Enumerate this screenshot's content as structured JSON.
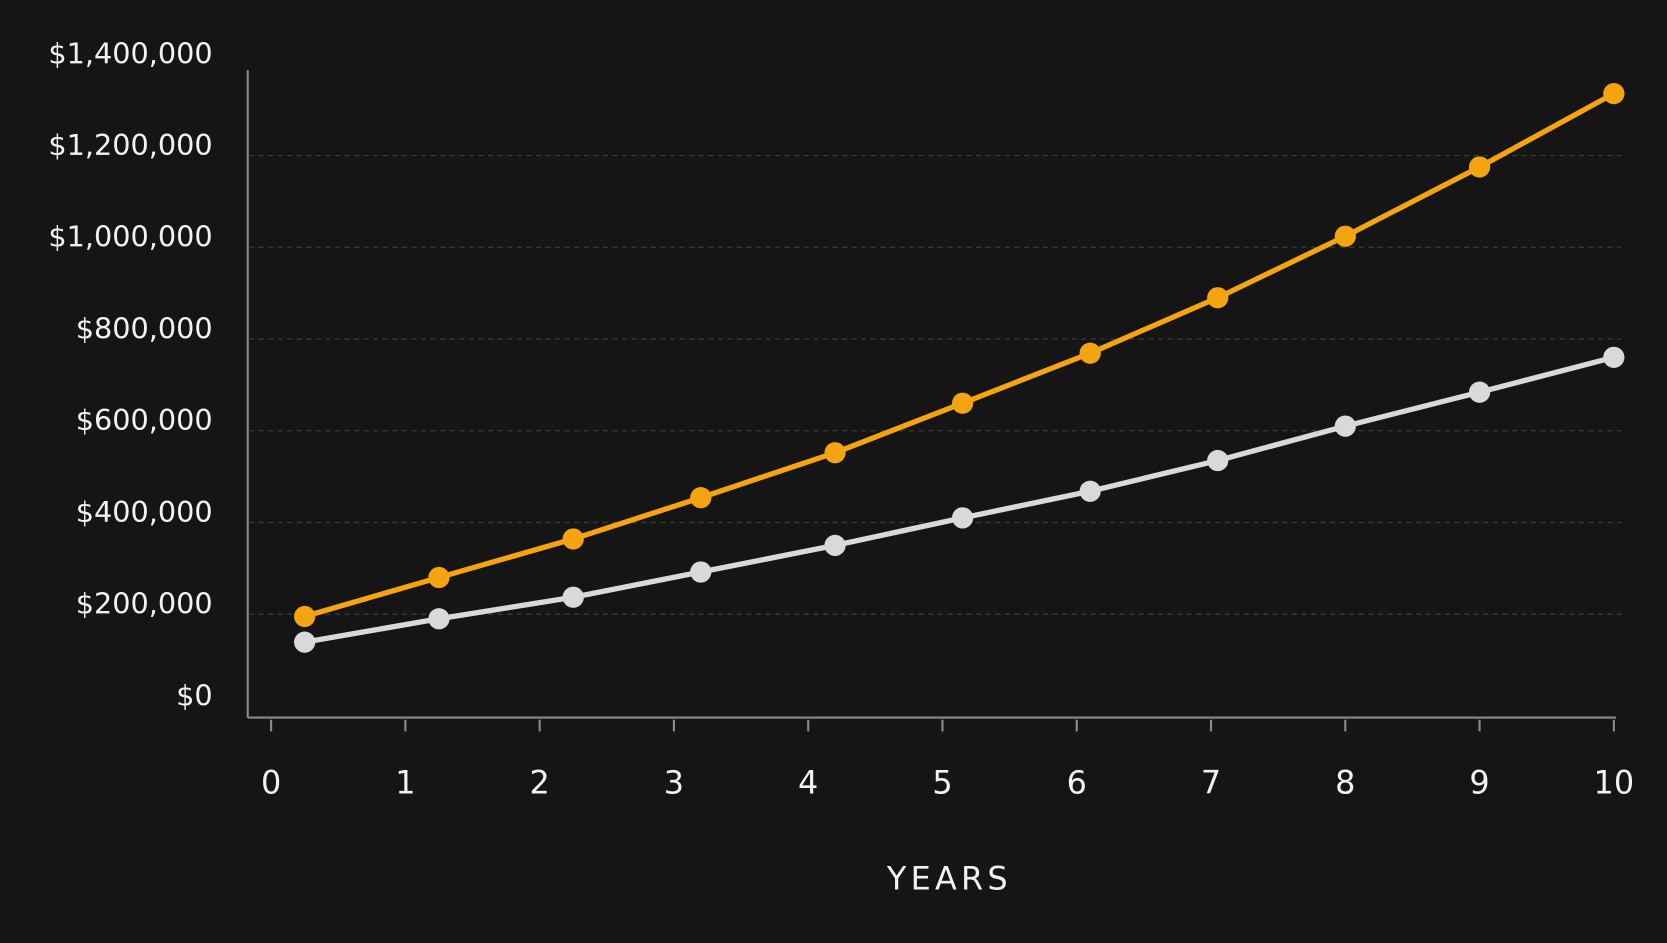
{
  "chart_data": {
    "type": "line",
    "x_label": "YEARS",
    "x": [
      0.25,
      1.25,
      2.25,
      3.2,
      4.2,
      5.15,
      6.1,
      7.05,
      8.0,
      9.0,
      10
    ],
    "series": [
      {
        "color": "#f5a30f",
        "values": [
          195000,
          280000,
          364000,
          454000,
          552000,
          660000,
          769000,
          890000,
          1024000,
          1175000,
          1335000
        ]
      },
      {
        "color": "#d9d9d9",
        "values": [
          139000,
          190000,
          237000,
          292000,
          350000,
          410000,
          468000,
          535000,
          610000,
          684000,
          760000
        ]
      }
    ],
    "xlim": [
      0,
      10
    ],
    "xticks": [
      0,
      1,
      2,
      3,
      4,
      5,
      6,
      7,
      8,
      9,
      10
    ],
    "ylim": [
      0,
      1400000
    ],
    "yticks": [
      {
        "value": 0,
        "label": "$0"
      },
      {
        "value": 200000,
        "label": "$200,000"
      },
      {
        "value": 400000,
        "label": "$400,000"
      },
      {
        "value": 600000,
        "label": "$600,000"
      },
      {
        "value": 800000,
        "label": "$800,000"
      },
      {
        "value": 1000000,
        "label": "$1,000,000"
      },
      {
        "value": 1200000,
        "label": "$1,200,000"
      },
      {
        "value": 1400000,
        "label": "$1,400,000"
      }
    ],
    "grid": true
  }
}
